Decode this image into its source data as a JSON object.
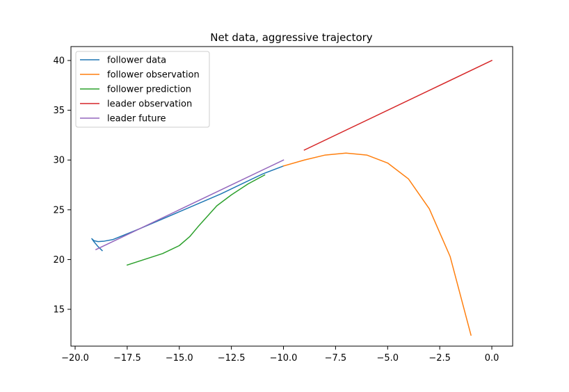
{
  "chart_data": {
    "type": "line",
    "title": "Net data, aggressive trajectory",
    "xlabel": "",
    "ylabel": "",
    "xlim": [
      -20.2,
      1.0
    ],
    "ylim": [
      11.3,
      41.4
    ],
    "xticks": [
      -20.0,
      -17.5,
      -15.0,
      -12.5,
      -10.0,
      -7.5,
      -5.0,
      -2.5,
      0.0
    ],
    "xtick_labels": [
      "−20.0",
      "−17.5",
      "−15.0",
      "−12.5",
      "−10.0",
      "−7.5",
      "−5.0",
      "−2.5",
      "0.0"
    ],
    "yticks": [
      15,
      20,
      25,
      30,
      35,
      40
    ],
    "ytick_labels": [
      "15",
      "20",
      "25",
      "30",
      "35",
      "40"
    ],
    "grid": false,
    "legend_position": "top-left",
    "series": [
      {
        "name": "follower data",
        "color": "#1f77b4",
        "x": [
          -18.7,
          -18.9,
          -19.1,
          -19.2,
          -19.1,
          -18.9,
          -18.6,
          -18.2,
          -17.6,
          -16.9,
          -16.0,
          -15.0,
          -14.0,
          -13.0,
          -12.0,
          -11.0,
          -10.0
        ],
        "y": [
          20.9,
          21.3,
          21.8,
          22.1,
          21.9,
          21.8,
          21.85,
          22.0,
          22.5,
          23.1,
          23.9,
          24.8,
          25.7,
          26.6,
          27.6,
          28.6,
          29.4
        ]
      },
      {
        "name": "follower observation",
        "color": "#ff7f0e",
        "x": [
          -10.0,
          -9.0,
          -8.0,
          -7.0,
          -6.0,
          -5.0,
          -4.0,
          -3.0,
          -2.0,
          -1.0
        ],
        "y": [
          29.4,
          30.0,
          30.5,
          30.7,
          30.5,
          29.7,
          28.1,
          25.1,
          20.3,
          12.4
        ]
      },
      {
        "name": "follower prediction",
        "color": "#2ca02c",
        "x": [
          -17.5,
          -15.8,
          -15.0,
          -14.5,
          -14.1,
          -13.2,
          -12.5,
          -11.7,
          -10.9
        ],
        "y": [
          19.45,
          20.6,
          21.4,
          22.3,
          23.3,
          25.4,
          26.5,
          27.6,
          28.5
        ]
      },
      {
        "name": "leader observation",
        "color": "#d62728",
        "x": [
          -9.0,
          0.0
        ],
        "y": [
          31.0,
          40.0
        ]
      },
      {
        "name": "leader future",
        "color": "#9467bd",
        "x": [
          -19.0,
          -10.0
        ],
        "y": [
          21.0,
          30.0
        ]
      }
    ]
  }
}
